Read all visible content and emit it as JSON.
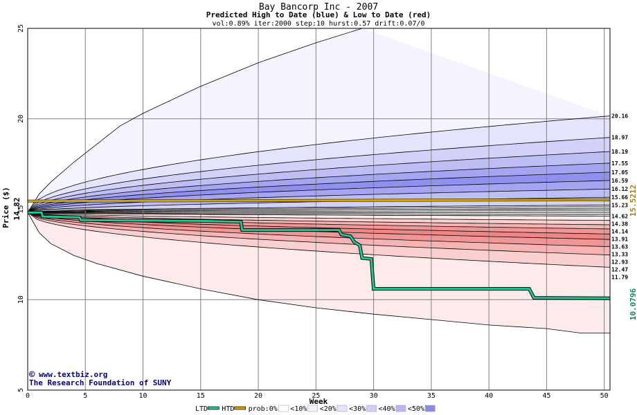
{
  "chart_data": {
    "type": "area",
    "title": "Bay Bancorp Inc - 2007",
    "subtitle": "Predicted High to Date (blue) &  Low to Date (red)",
    "params": "vol:0.89% iter:2000 step:10 hurst:0.57 drift:0.07/0",
    "xlabel": "Week",
    "ylabel": "Price ($)",
    "xlim": [
      0,
      50.5
    ],
    "ylim": [
      5,
      25
    ],
    "xticks": [
      "0",
      "5",
      "10",
      "15",
      "20",
      "25",
      "30",
      "35",
      "40",
      "45",
      "50"
    ],
    "yticks": [
      "5",
      "10",
      "15",
      "20",
      "25"
    ],
    "grid": true,
    "start_price": 14.82,
    "start_price_label": "14.82",
    "htd_value": 15.5212,
    "htd_label": "15.5212",
    "ltd_value": 10.0796,
    "ltd_label": "10.0796",
    "end_labels": [
      "20.16",
      "18.97",
      "18.19",
      "17.55",
      "17.05",
      "16.59",
      "16.12",
      "15.66",
      "15.23",
      "14.62",
      "14.38",
      "14.14",
      "13.91",
      "13.63",
      "13.33",
      "12.93",
      "12.47",
      "11.79"
    ],
    "band_colors": [
      "#f3f3ff",
      "#e3e3fb",
      "#cfcff7",
      "#b8b8f3",
      "#9e9ef0",
      "#8a8aeb",
      "#fff1f1",
      "#fde0e0",
      "#f9c9c9",
      "#f4aaaa",
      "#ef8d8d",
      "#ea7676"
    ],
    "high_band_top": [
      [
        0,
        14.82
      ],
      [
        1,
        15.85
      ],
      [
        2,
        16.5
      ],
      [
        4,
        17.6
      ],
      [
        6,
        18.6
      ],
      [
        8,
        19.6
      ],
      [
        10,
        20.3
      ],
      [
        15,
        21.8
      ],
      [
        20,
        23.1
      ],
      [
        25,
        24.2
      ],
      [
        29,
        25.0
      ]
    ],
    "high_bands": [
      {
        "end": 20.16,
        "p": 0.1
      },
      {
        "end": 18.97,
        "p": 0.2
      },
      {
        "end": 18.19,
        "p": 0.3
      },
      {
        "end": 17.55,
        "p": 0.4
      },
      {
        "end": 17.05,
        "p": 0.5
      },
      {
        "end": 16.59,
        "p": 0.5
      },
      {
        "end": 16.12,
        "p": 0.4
      },
      {
        "end": 15.66,
        "p": 0.3
      },
      {
        "end": 15.23,
        "p": 0.0
      }
    ],
    "low_bands": [
      {
        "end": 14.62,
        "p": 0.0
      },
      {
        "end": 14.38,
        "p": 0.3
      },
      {
        "end": 14.14,
        "p": 0.4
      },
      {
        "end": 13.91,
        "p": 0.5
      },
      {
        "end": 13.63,
        "p": 0.5
      },
      {
        "end": 13.33,
        "p": 0.4
      },
      {
        "end": 12.93,
        "p": 0.3
      },
      {
        "end": 12.47,
        "p": 0.2
      },
      {
        "end": 11.79,
        "p": 0.1
      }
    ],
    "low_band_bottom": [
      [
        0,
        14.82
      ],
      [
        1,
        13.7
      ],
      [
        2,
        13.1
      ],
      [
        4,
        12.45
      ],
      [
        6,
        12.0
      ],
      [
        10,
        11.3
      ],
      [
        15,
        10.6
      ],
      [
        20,
        10.0
      ],
      [
        25,
        9.55
      ],
      [
        30,
        9.2
      ],
      [
        35,
        8.9
      ],
      [
        40,
        8.6
      ],
      [
        45,
        8.4
      ],
      [
        48,
        8.15
      ],
      [
        50.5,
        8.15
      ]
    ],
    "series": [
      {
        "name": "HTD",
        "color": "#d6a400",
        "points": [
          [
            0,
            15.45
          ],
          [
            50.5,
            15.5212
          ]
        ]
      },
      {
        "name": "LTD",
        "color": "#20c896",
        "points": [
          [
            0,
            14.82
          ],
          [
            1.2,
            14.82
          ],
          [
            1.3,
            14.6
          ],
          [
            4.5,
            14.55
          ],
          [
            4.6,
            14.4
          ],
          [
            15.5,
            14.35
          ],
          [
            18.5,
            14.3
          ],
          [
            18.6,
            13.85
          ],
          [
            27.0,
            13.85
          ],
          [
            27.2,
            13.6
          ],
          [
            28.0,
            13.5
          ],
          [
            28.3,
            13.2
          ],
          [
            28.8,
            13.0
          ],
          [
            29.0,
            12.3
          ],
          [
            29.8,
            12.25
          ],
          [
            30.0,
            10.6
          ],
          [
            43.5,
            10.6
          ],
          [
            43.9,
            10.1
          ],
          [
            50.5,
            10.0796
          ]
        ]
      }
    ]
  },
  "watermark": {
    "line1": "www.textbiz.org",
    "copyright_symbol": "©",
    "line2": "The Research Foundation of SUNY"
  },
  "legend": {
    "items": [
      {
        "label": "LTD",
        "color": "#20c896"
      },
      {
        "label": "HTD",
        "color": "#d6a400"
      },
      {
        "label": "prob:0%",
        "swatch": "#ffffff"
      },
      {
        "label": "<10%",
        "swatch": "#f3f3ff"
      },
      {
        "label": "<20%",
        "swatch": "#e3e3fb"
      },
      {
        "label": "<30%",
        "swatch": "#cfcff7"
      },
      {
        "label": "<40%",
        "swatch": "#b8b8f3"
      },
      {
        "label": "<50%",
        "swatch": "#8a8aeb"
      }
    ]
  },
  "colors": {
    "frame": "#000000",
    "grid": "#808080",
    "label_text": "#000000",
    "htd_label": "#b08000",
    "ltd_label": "#118866",
    "watermark": "#000080"
  }
}
